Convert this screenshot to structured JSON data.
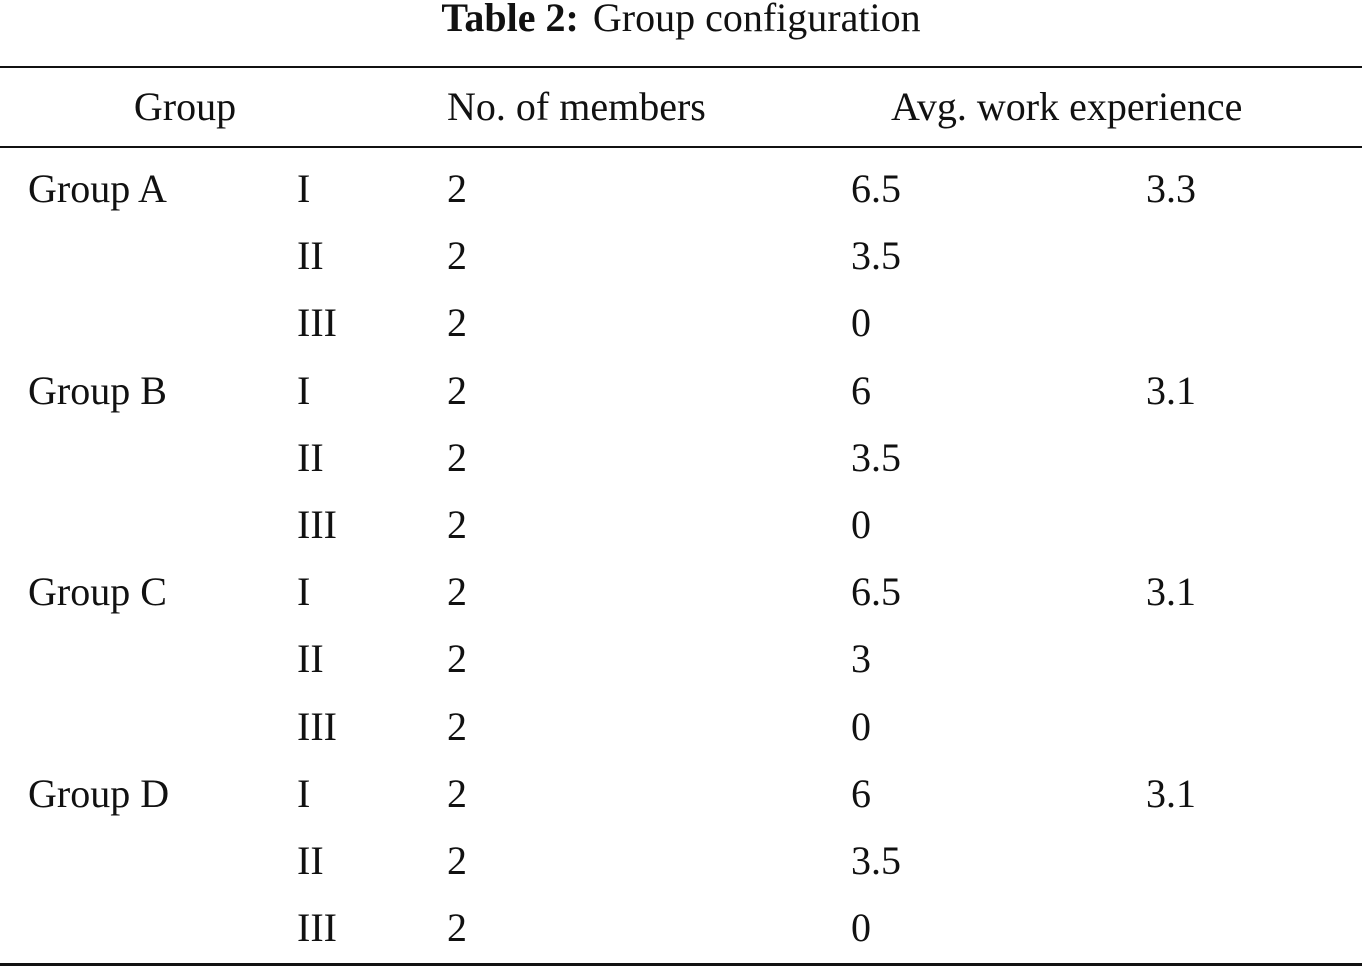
{
  "caption": {
    "label": "Table 2:",
    "text": "Group configuration"
  },
  "table": {
    "headers": {
      "group": "Group",
      "members": "No. of members",
      "experience": "Avg. work experience"
    },
    "rows": [
      {
        "group": "Group A",
        "sub": "I",
        "members": "2",
        "experience": "6.5",
        "average": "3.3"
      },
      {
        "group": "",
        "sub": "II",
        "members": "2",
        "experience": "3.5",
        "average": ""
      },
      {
        "group": "",
        "sub": "III",
        "members": "2",
        "experience": "0",
        "average": ""
      },
      {
        "group": "Group B",
        "sub": "I",
        "members": "2",
        "experience": "6",
        "average": "3.1"
      },
      {
        "group": "",
        "sub": "II",
        "members": "2",
        "experience": "3.5",
        "average": ""
      },
      {
        "group": "",
        "sub": "III",
        "members": "2",
        "experience": "0",
        "average": ""
      },
      {
        "group": "Group C",
        "sub": "I",
        "members": "2",
        "experience": "6.5",
        "average": "3.1"
      },
      {
        "group": "",
        "sub": "II",
        "members": "2",
        "experience": "3",
        "average": ""
      },
      {
        "group": "",
        "sub": "III",
        "members": "2",
        "experience": "0",
        "average": ""
      },
      {
        "group": "Group D",
        "sub": "I",
        "members": "2",
        "experience": "6",
        "average": "3.1"
      },
      {
        "group": "",
        "sub": "II",
        "members": "2",
        "experience": "3.5",
        "average": ""
      },
      {
        "group": "",
        "sub": "III",
        "members": "2",
        "experience": "0",
        "average": ""
      }
    ]
  }
}
